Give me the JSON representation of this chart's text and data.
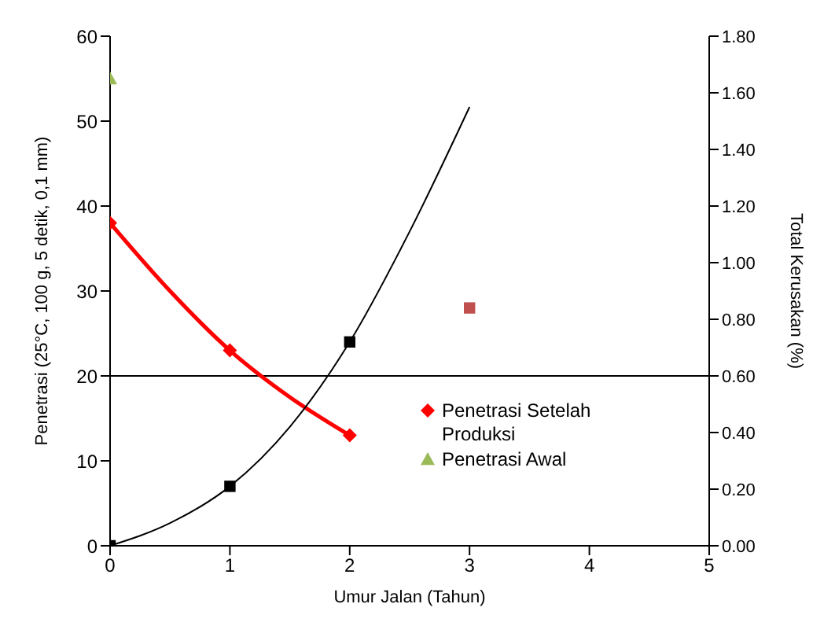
{
  "chart_data": {
    "type": "scatter",
    "xlabel": "Umur Jalan (Tahun)",
    "ylabel": "Penetrasi (25°C, 100 g, 5 detik, 0,1 mm)",
    "y2label": "Total Kerusakan (%)",
    "xlim": [
      0,
      5
    ],
    "xticks": [
      0,
      1,
      2,
      3,
      4,
      5
    ],
    "ylim": [
      0,
      60
    ],
    "yticks": [
      0,
      10,
      20,
      30,
      40,
      50,
      60
    ],
    "y2lim": [
      0,
      1.8
    ],
    "y2ticks": [
      {
        "value": 0,
        "label": "0.00"
      },
      {
        "value": 0.2,
        "label": "0.20"
      },
      {
        "value": 0.4,
        "label": "0.40"
      },
      {
        "value": 0.6,
        "label": "0.60"
      },
      {
        "value": 0.8,
        "label": "0.80"
      },
      {
        "value": 1,
        "label": "1.00"
      },
      {
        "value": 1.2,
        "label": "1.20"
      },
      {
        "value": 1.4,
        "label": "1.40"
      },
      {
        "value": 1.6,
        "label": "1.60"
      },
      {
        "value": 1.8,
        "label": "1.80"
      }
    ],
    "grid": false,
    "legend": "right",
    "ref_lines": [
      {
        "axis": "y",
        "value": 20,
        "color": "#000000"
      }
    ],
    "series": [
      {
        "type": "line",
        "color": "#ff0000",
        "marker": "none",
        "x": [
          0,
          0.5,
          1,
          1.5,
          2
        ],
        "values": [
          38,
          30,
          23,
          17.5,
          13
        ]
      },
      {
        "type": "line",
        "axis": "y2",
        "color": "#000000",
        "marker": "none",
        "x": [
          0,
          0.5,
          1,
          1.5,
          2,
          2.5,
          3
        ],
        "values": [
          0,
          0.08,
          0.21,
          0.42,
          0.72,
          1.11,
          1.55
        ]
      },
      {
        "name": "Penetrasi Setelah Produksi",
        "color": "#ff0000",
        "marker": "diamond",
        "x": [
          0,
          1,
          2
        ],
        "values": [
          38,
          23,
          13
        ]
      },
      {
        "name": "Penetrasi Awal",
        "color": "#9bbb59",
        "marker": "triangle",
        "x": [
          0
        ],
        "values": [
          55
        ]
      },
      {
        "axis": "y2",
        "color": "#000000",
        "marker": "square",
        "x": [
          0,
          1,
          2
        ],
        "values": [
          0,
          0.21,
          0.72
        ]
      },
      {
        "axis": "y2",
        "color": "#c0504d",
        "marker": "square",
        "x": [
          3
        ],
        "values": [
          0.84
        ]
      }
    ]
  }
}
